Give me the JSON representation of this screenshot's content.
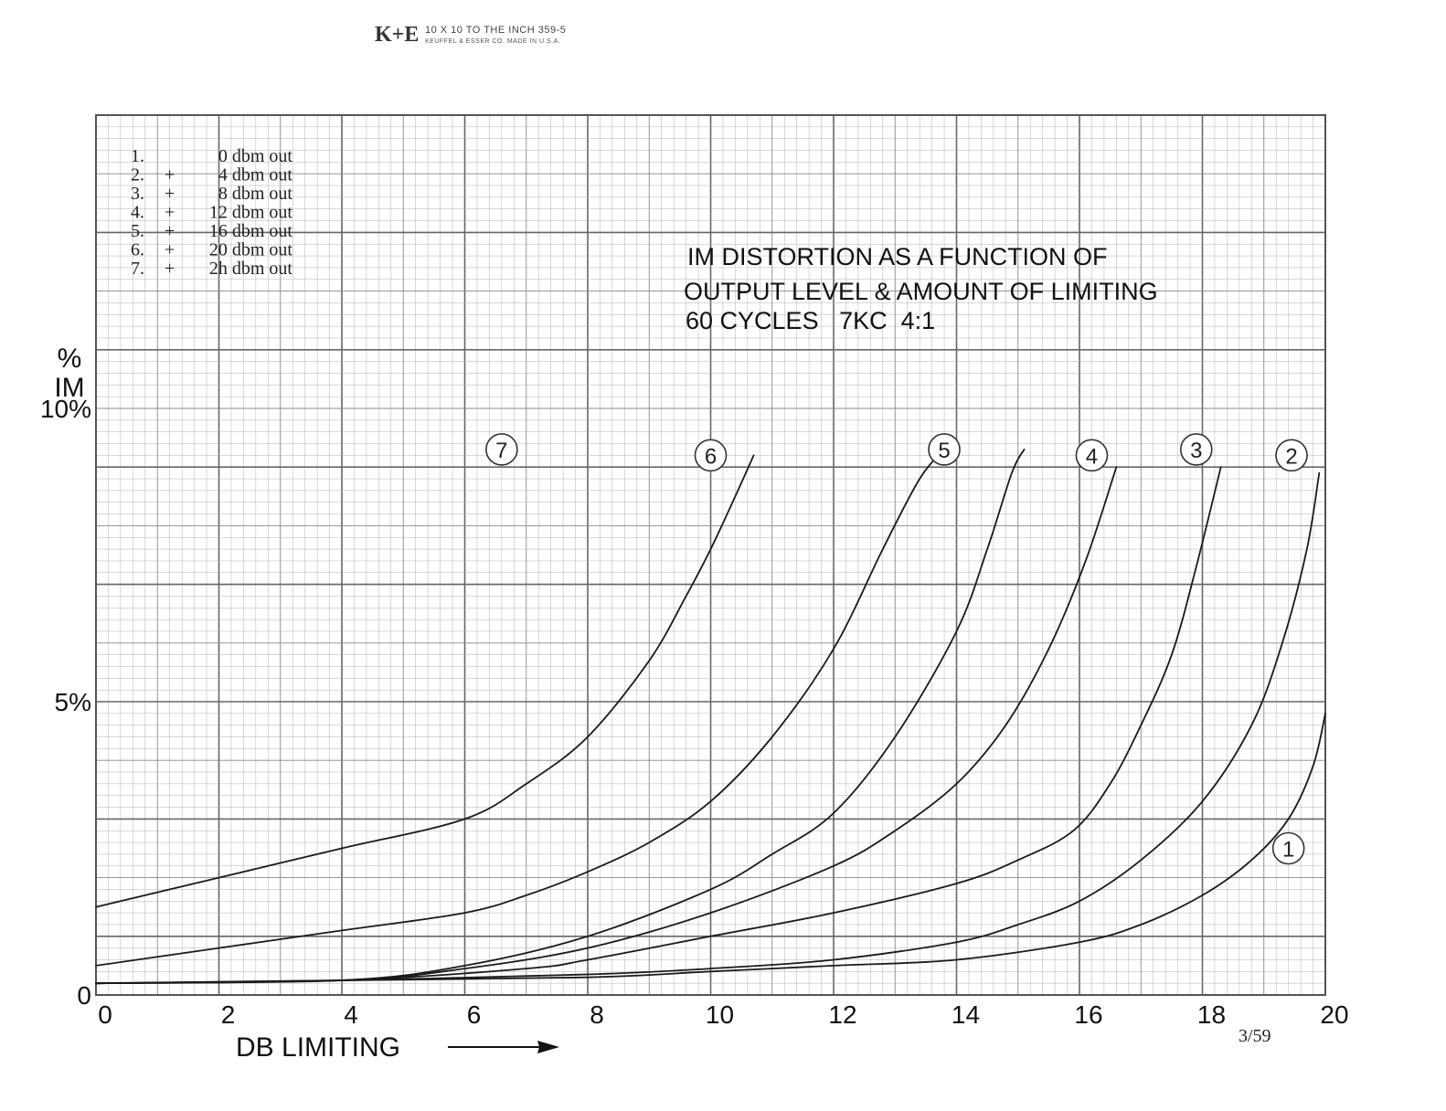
{
  "sheet": {
    "logo": "K+E",
    "ruling_line": "10 X 10 TO THE INCH   359-5",
    "maker_line": "KEUFFEL & ESSER CO.   MADE IN U.S.A.",
    "date_mark": "3/59"
  },
  "chart_data": {
    "type": "line",
    "title_lines": [
      "IM DISTORTION AS A FUNCTION OF",
      "OUTPUT LEVEL & AMOUNT OF LIMITING",
      "60 CYCLES   7KC  4:1"
    ],
    "xlabel": "DB LIMITING",
    "ylabel_lines": [
      "%",
      "IM"
    ],
    "xlim": [
      0,
      20
    ],
    "ylim": [
      0,
      15
    ],
    "x_ticks": [
      0,
      2,
      4,
      6,
      8,
      10,
      12,
      14,
      16,
      18,
      20
    ],
    "x_tick_labels": [
      "0",
      "2",
      "4",
      "6",
      "8",
      "10",
      "12",
      "14",
      "16",
      "18",
      "20"
    ],
    "y_ticks": [
      0,
      5,
      10
    ],
    "y_tick_labels": [
      "0",
      "5%",
      "10%"
    ],
    "grid": true,
    "legend_position": "top-left",
    "legend": [
      {
        "num": "1.",
        "sign": "",
        "text": "0 dbm out"
      },
      {
        "num": "2.",
        "sign": "+",
        "text": "4 dbm out"
      },
      {
        "num": "3.",
        "sign": "+",
        "text": "8 dbm out"
      },
      {
        "num": "4.",
        "sign": "+",
        "text": "12 dbm out"
      },
      {
        "num": "5.",
        "sign": "+",
        "text": "16 dbm out"
      },
      {
        "num": "6.",
        "sign": "+",
        "text": "20 dbm out"
      },
      {
        "num": "7.",
        "sign": "+",
        "text": "2h dbm out"
      }
    ],
    "series": [
      {
        "name": "1",
        "label_at": [
          19.4,
          2.5
        ],
        "points": [
          [
            0,
            0.2
          ],
          [
            4,
            0.25
          ],
          [
            8,
            0.3
          ],
          [
            10,
            0.4
          ],
          [
            12,
            0.5
          ],
          [
            14,
            0.6
          ],
          [
            16,
            0.9
          ],
          [
            17,
            1.2
          ],
          [
            18,
            1.7
          ],
          [
            18.8,
            2.3
          ],
          [
            19.4,
            3.0
          ],
          [
            19.8,
            3.9
          ],
          [
            20,
            4.8
          ]
        ]
      },
      {
        "name": "2",
        "label_at": [
          19.45,
          9.2
        ],
        "points": [
          [
            0,
            0.2
          ],
          [
            4,
            0.25
          ],
          [
            8,
            0.35
          ],
          [
            10,
            0.45
          ],
          [
            12,
            0.6
          ],
          [
            14,
            0.9
          ],
          [
            15,
            1.2
          ],
          [
            16,
            1.6
          ],
          [
            17,
            2.3
          ],
          [
            18,
            3.3
          ],
          [
            18.8,
            4.6
          ],
          [
            19.3,
            6.0
          ],
          [
            19.7,
            7.6
          ],
          [
            19.9,
            8.9
          ]
        ]
      },
      {
        "name": "3",
        "label_at": [
          17.9,
          9.3
        ],
        "points": [
          [
            0,
            0.2
          ],
          [
            4,
            0.25
          ],
          [
            7,
            0.45
          ],
          [
            8,
            0.6
          ],
          [
            10,
            1.0
          ],
          [
            12,
            1.4
          ],
          [
            14,
            1.9
          ],
          [
            15,
            2.3
          ],
          [
            15.9,
            2.8
          ],
          [
            16.5,
            3.6
          ],
          [
            17,
            4.6
          ],
          [
            17.5,
            5.8
          ],
          [
            17.9,
            7.3
          ],
          [
            18.3,
            9.0
          ]
        ]
      },
      {
        "name": "4",
        "label_at": [
          16.2,
          9.2
        ],
        "points": [
          [
            0,
            0.2
          ],
          [
            4,
            0.25
          ],
          [
            6,
            0.45
          ],
          [
            8,
            0.8
          ],
          [
            10,
            1.4
          ],
          [
            12,
            2.2
          ],
          [
            13,
            2.8
          ],
          [
            14,
            3.6
          ],
          [
            14.8,
            4.6
          ],
          [
            15.5,
            5.9
          ],
          [
            16.1,
            7.4
          ],
          [
            16.6,
            9.0
          ]
        ]
      },
      {
        "name": "5",
        "label_at": [
          13.8,
          9.3
        ],
        "points": [
          [
            0,
            0.2
          ],
          [
            4,
            0.25
          ],
          [
            6,
            0.5
          ],
          [
            8,
            1.0
          ],
          [
            10,
            1.8
          ],
          [
            11,
            2.4
          ],
          [
            12,
            3.1
          ],
          [
            13,
            4.4
          ],
          [
            14,
            6.2
          ],
          [
            14.5,
            7.6
          ],
          [
            14.9,
            8.9
          ],
          [
            15.1,
            9.3
          ]
        ]
      },
      {
        "name": "6",
        "label_at": [
          10.0,
          9.2
        ],
        "points": [
          [
            0,
            0.5
          ],
          [
            2,
            0.8
          ],
          [
            4,
            1.1
          ],
          [
            6,
            1.4
          ],
          [
            7,
            1.7
          ],
          [
            8,
            2.1
          ],
          [
            9,
            2.6
          ],
          [
            10,
            3.3
          ],
          [
            11,
            4.4
          ],
          [
            12,
            5.9
          ],
          [
            12.8,
            7.6
          ],
          [
            13.4,
            8.8
          ],
          [
            13.8,
            9.3
          ]
        ]
      },
      {
        "name": "7",
        "label_at": [
          6.6,
          9.3
        ],
        "points": [
          [
            0,
            1.5
          ],
          [
            2,
            2.0
          ],
          [
            4,
            2.5
          ],
          [
            6,
            3.0
          ],
          [
            7,
            3.6
          ],
          [
            8,
            4.4
          ],
          [
            9,
            5.7
          ],
          [
            9.6,
            6.8
          ],
          [
            10,
            7.6
          ],
          [
            10.4,
            8.5
          ],
          [
            10.7,
            9.2
          ]
        ]
      }
    ]
  }
}
